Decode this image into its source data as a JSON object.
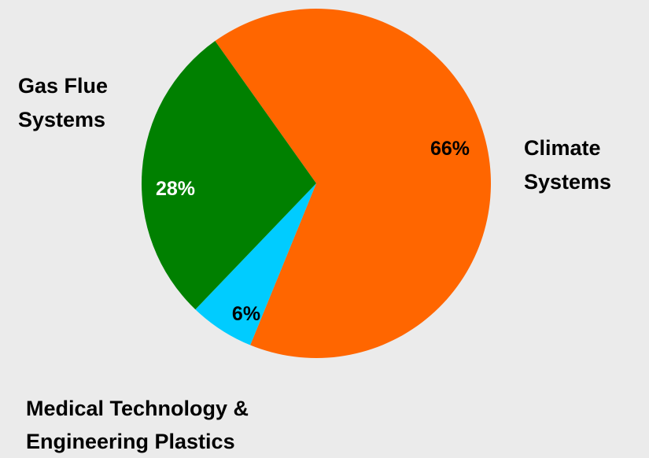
{
  "chart_data": {
    "type": "pie",
    "title": "",
    "slices": [
      {
        "label_lines": [
          "Climate",
          "Systems"
        ],
        "value": 66,
        "value_label": "66%",
        "color": "#ff6600",
        "value_label_color": "#000000"
      },
      {
        "label_lines": [
          "Medical Technology &",
          "Engineering Plastics"
        ],
        "value": 6,
        "value_label": "6%",
        "color": "#00ccff",
        "value_label_color": "#000000"
      },
      {
        "label_lines": [
          "Gas Flue",
          "Systems"
        ],
        "value": 28,
        "value_label": "28%",
        "color": "#008000",
        "value_label_color": "#ffffff"
      }
    ]
  }
}
